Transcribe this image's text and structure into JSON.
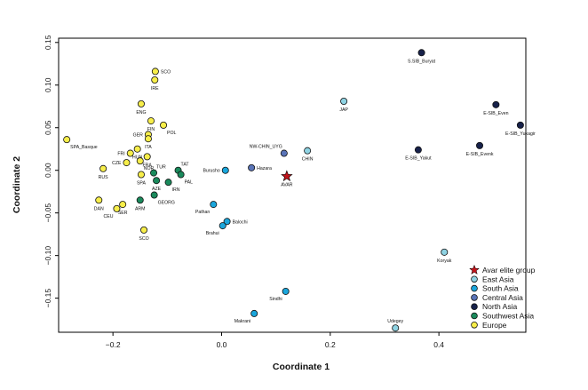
{
  "chart_data": {
    "type": "scatter",
    "title": "",
    "xlabel": "Coordinate 1",
    "ylabel": "Coordinate 2",
    "xlim": [
      -0.3,
      0.56
    ],
    "ylim": [
      -0.19,
      0.155
    ],
    "xticks": [
      {
        "value": -0.2,
        "label": "−0.2"
      },
      {
        "value": 0.0,
        "label": "0.0"
      },
      {
        "value": 0.2,
        "label": "0.2"
      },
      {
        "value": 0.4,
        "label": "0.4"
      }
    ],
    "yticks": [
      {
        "value": 0.15,
        "label": "0.15"
      },
      {
        "value": 0.1,
        "label": "0.10"
      },
      {
        "value": 0.05,
        "label": "0.05"
      },
      {
        "value": 0.0,
        "label": "0.00"
      },
      {
        "value": -0.05,
        "label": "−0.05"
      },
      {
        "value": -0.1,
        "label": "−0.10"
      },
      {
        "value": -0.15,
        "label": "−0.15"
      }
    ],
    "grid": false,
    "legend_position": "bottom-right",
    "groups": [
      {
        "key": "avar",
        "name": "Avar elite group",
        "color": "#c1141b",
        "marker": "star"
      },
      {
        "key": "east_asia",
        "name": "East Asia",
        "color": "#8fd3e3",
        "marker": "circle"
      },
      {
        "key": "south_asia",
        "name": "South Asia",
        "color": "#1aa6dc",
        "marker": "circle"
      },
      {
        "key": "central_asia",
        "name": "Central Asia",
        "color": "#5a74b8",
        "marker": "circle"
      },
      {
        "key": "north_asia",
        "name": "North Asia",
        "color": "#17214a",
        "marker": "circle"
      },
      {
        "key": "southwest_asia",
        "name": "Southwest Asia",
        "color": "#1a8a5c",
        "marker": "circle"
      },
      {
        "key": "europe",
        "name": "Europe",
        "color": "#f7ee4a",
        "marker": "circle"
      }
    ],
    "points": [
      {
        "label": "AVAR",
        "group": "avar",
        "x": 0.12,
        "y": -0.007,
        "anchor": "below"
      },
      {
        "label": "JAP",
        "group": "east_asia",
        "x": 0.225,
        "y": 0.081,
        "anchor": "below"
      },
      {
        "label": "CHIN",
        "group": "east_asia",
        "x": 0.158,
        "y": 0.023,
        "anchor": "below"
      },
      {
        "label": "Koryak",
        "group": "east_asia",
        "x": 0.41,
        "y": -0.096,
        "anchor": "below"
      },
      {
        "label": "Udegey",
        "group": "east_asia",
        "x": 0.32,
        "y": -0.185,
        "anchor": "above"
      },
      {
        "label": "Burusho",
        "group": "south_asia",
        "x": 0.007,
        "y": 0.0,
        "anchor": "left"
      },
      {
        "label": "Pathan",
        "group": "south_asia",
        "x": -0.015,
        "y": -0.04,
        "anchor": "below-left"
      },
      {
        "label": "Balochi",
        "group": "south_asia",
        "x": 0.01,
        "y": -0.06,
        "anchor": "right"
      },
      {
        "label": "Brahui",
        "group": "south_asia",
        "x": 0.002,
        "y": -0.065,
        "anchor": "below-left"
      },
      {
        "label": "Sindhi",
        "group": "south_asia",
        "x": 0.118,
        "y": -0.142,
        "anchor": "below-left"
      },
      {
        "label": "Makrani",
        "group": "south_asia",
        "x": 0.06,
        "y": -0.168,
        "anchor": "below-left"
      },
      {
        "label": "Hazara",
        "group": "central_asia",
        "x": 0.055,
        "y": 0.003,
        "anchor": "right"
      },
      {
        "label": "NW-CHIN_UYG",
        "group": "central_asia",
        "x": 0.115,
        "y": 0.02,
        "anchor": "above-left"
      },
      {
        "label": "S.SIB_Buryat",
        "group": "north_asia",
        "x": 0.368,
        "y": 0.138,
        "anchor": "below"
      },
      {
        "label": "E-SIB_Even",
        "group": "north_asia",
        "x": 0.505,
        "y": 0.077,
        "anchor": "below"
      },
      {
        "label": "E-SIB_Yukagir",
        "group": "north_asia",
        "x": 0.55,
        "y": 0.053,
        "anchor": "below"
      },
      {
        "label": "E-SIB_Evenk",
        "group": "north_asia",
        "x": 0.475,
        "y": 0.029,
        "anchor": "below"
      },
      {
        "label": "E-SIB_Yakut",
        "group": "north_asia",
        "x": 0.362,
        "y": 0.024,
        "anchor": "below"
      },
      {
        "label": "TAT",
        "group": "southwest_asia",
        "x": -0.08,
        "y": 0.0,
        "anchor": "above-right"
      },
      {
        "label": "TUR",
        "group": "southwest_asia",
        "x": -0.125,
        "y": -0.003,
        "anchor": "above-right"
      },
      {
        "label": "PAL",
        "group": "southwest_asia",
        "x": -0.075,
        "y": -0.005,
        "anchor": "below-right"
      },
      {
        "label": "AZE",
        "group": "southwest_asia",
        "x": -0.12,
        "y": -0.012,
        "anchor": "below"
      },
      {
        "label": "IRN",
        "group": "southwest_asia",
        "x": -0.098,
        "y": -0.014,
        "anchor": "below-right"
      },
      {
        "label": "ARM",
        "group": "southwest_asia",
        "x": -0.15,
        "y": -0.035,
        "anchor": "below"
      },
      {
        "label": "GEORG",
        "group": "southwest_asia",
        "x": -0.124,
        "y": -0.029,
        "anchor": "below-right"
      },
      {
        "label": "SCO",
        "group": "europe",
        "x": -0.122,
        "y": 0.116,
        "anchor": "right"
      },
      {
        "label": "IRE",
        "group": "europe",
        "x": -0.123,
        "y": 0.106,
        "anchor": "below"
      },
      {
        "label": "ENG",
        "group": "europe",
        "x": -0.148,
        "y": 0.078,
        "anchor": "below"
      },
      {
        "label": "FIN",
        "group": "europe",
        "x": -0.13,
        "y": 0.058,
        "anchor": "below"
      },
      {
        "label": "POL",
        "group": "europe",
        "x": -0.107,
        "y": 0.053,
        "anchor": "below-right"
      },
      {
        "label": "GER",
        "group": "europe",
        "x": -0.135,
        "y": 0.042,
        "anchor": "left"
      },
      {
        "label": "ITA",
        "group": "europe",
        "x": -0.135,
        "y": 0.037,
        "anchor": "below"
      },
      {
        "label": "SPA_Basque",
        "group": "europe",
        "x": -0.285,
        "y": 0.036,
        "anchor": "below-right"
      },
      {
        "label": "HUN",
        "group": "europe",
        "x": -0.155,
        "y": 0.025,
        "anchor": "below"
      },
      {
        "label": "FRI",
        "group": "europe",
        "x": -0.168,
        "y": 0.02,
        "anchor": "left"
      },
      {
        "label": "FRA",
        "group": "europe",
        "x": -0.137,
        "y": 0.016,
        "anchor": "below"
      },
      {
        "label": "NOR",
        "group": "europe",
        "x": -0.15,
        "y": 0.011,
        "anchor": "below-right"
      },
      {
        "label": "CZE",
        "group": "europe",
        "x": -0.175,
        "y": 0.009,
        "anchor": "left"
      },
      {
        "label": "RUS",
        "group": "europe",
        "x": -0.218,
        "y": 0.002,
        "anchor": "below"
      },
      {
        "label": "SPA",
        "group": "europe",
        "x": -0.148,
        "y": -0.005,
        "anchor": "below"
      },
      {
        "label": "DAN",
        "group": "europe",
        "x": -0.226,
        "y": -0.035,
        "anchor": "below"
      },
      {
        "label": "SER",
        "group": "europe",
        "x": -0.182,
        "y": -0.04,
        "anchor": "below"
      },
      {
        "label": "CEU",
        "group": "europe",
        "x": -0.193,
        "y": -0.045,
        "anchor": "below-left"
      },
      {
        "label": "SCO",
        "group": "europe",
        "x": -0.143,
        "y": -0.07,
        "anchor": "below"
      }
    ]
  }
}
